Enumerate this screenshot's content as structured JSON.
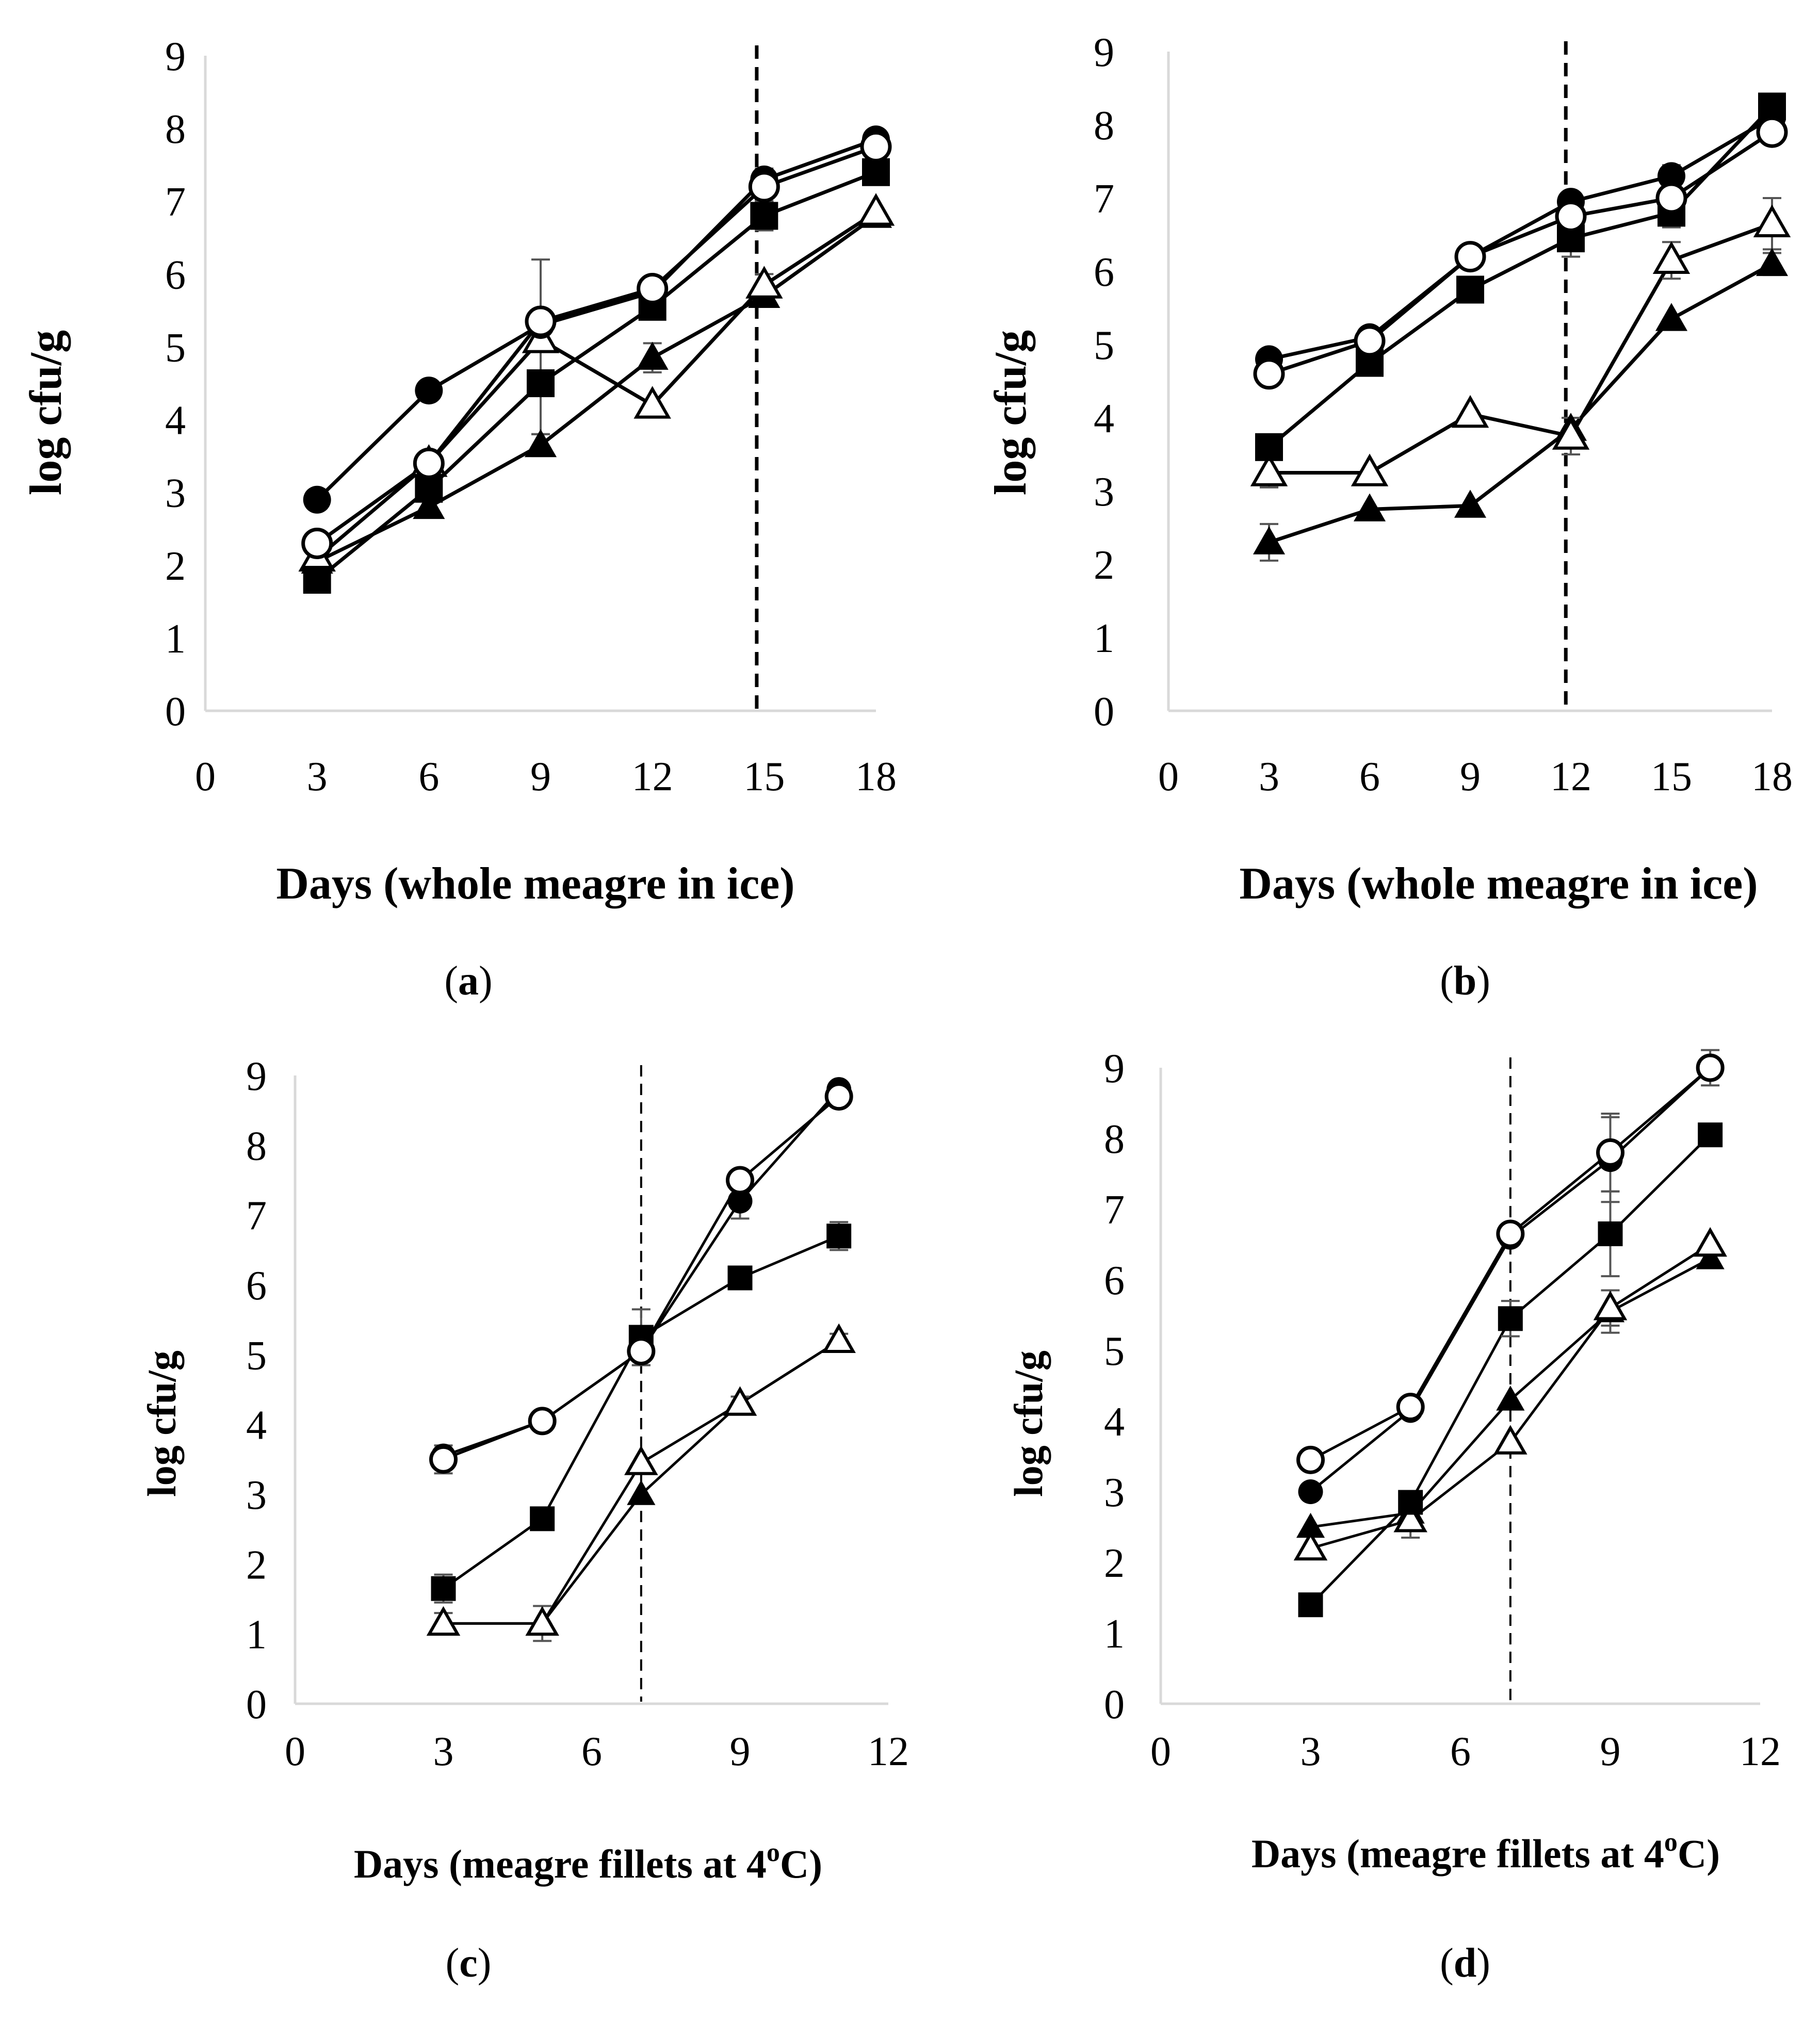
{
  "chart_data": [
    {
      "panel": "a",
      "type": "line",
      "ylabel": "log cfu/g",
      "xlabel": "Days (whole meagre in ice)",
      "caption_prefix": "(",
      "caption_letter": "a",
      "caption_suffix": ")",
      "xlim": [
        0,
        18
      ],
      "ylim": [
        0,
        9
      ],
      "xticks": [
        0,
        3,
        6,
        9,
        12,
        15,
        18
      ],
      "yticks": [
        0,
        1,
        2,
        3,
        4,
        5,
        6,
        7,
        8,
        9
      ],
      "dashed_line_x": 14.8,
      "series": [
        {
          "marker": "filled-circle",
          "x": [
            3,
            6,
            9,
            12,
            15,
            18
          ],
          "y": [
            2.9,
            4.4,
            5.3,
            5.75,
            7.3,
            7.85
          ],
          "err": [
            0,
            0,
            0,
            0,
            0.15,
            0
          ]
        },
        {
          "marker": "open-circle",
          "x": [
            3,
            6,
            9,
            12,
            15,
            18
          ],
          "y": [
            2.3,
            3.4,
            5.35,
            5.8,
            7.2,
            7.75
          ],
          "err": [
            0,
            0.15,
            0.85,
            0,
            0.2,
            0
          ]
        },
        {
          "marker": "filled-square",
          "x": [
            3,
            6,
            9,
            12,
            15,
            18
          ],
          "y": [
            1.8,
            3.05,
            4.5,
            5.55,
            6.8,
            7.4
          ],
          "err": [
            0,
            0,
            0.7,
            0,
            0.2,
            0
          ]
        },
        {
          "marker": "filled-triangle",
          "x": [
            3,
            6,
            9,
            12,
            15,
            18
          ],
          "y": [
            2.05,
            2.8,
            3.65,
            4.85,
            5.7,
            6.8
          ],
          "err": [
            0,
            0,
            0.15,
            0.2,
            0.15,
            0
          ]
        },
        {
          "marker": "open-triangle",
          "x": [
            3,
            6,
            9,
            12,
            15,
            18
          ],
          "y": [
            2.1,
            3.4,
            5.1,
            4.2,
            5.85,
            6.85
          ],
          "err": [
            0,
            0,
            0,
            0,
            0.15,
            0
          ]
        }
      ]
    },
    {
      "panel": "b",
      "type": "line",
      "ylabel": "log cfu/g",
      "xlabel": "Days (whole meagre in ice)",
      "caption_prefix": "(",
      "caption_letter": "b",
      "caption_suffix": ")",
      "xlim": [
        0,
        18
      ],
      "ylim": [
        0,
        9
      ],
      "xticks": [
        0,
        3,
        6,
        9,
        12,
        15,
        18
      ],
      "yticks": [
        0,
        1,
        2,
        3,
        4,
        5,
        6,
        7,
        8,
        9
      ],
      "dashed_line_x": 11.85,
      "series": [
        {
          "marker": "filled-circle",
          "x": [
            3,
            6,
            9,
            12,
            15,
            18
          ],
          "y": [
            4.8,
            5.1,
            6.2,
            6.95,
            7.3,
            8.1
          ],
          "err": [
            0,
            0,
            0,
            0,
            0.15,
            0
          ]
        },
        {
          "marker": "open-circle",
          "x": [
            3,
            6,
            9,
            12,
            15,
            18
          ],
          "y": [
            4.6,
            5.05,
            6.2,
            6.75,
            7.0,
            7.9
          ],
          "err": [
            0,
            0,
            0,
            0,
            0.15,
            0.15
          ]
        },
        {
          "marker": "filled-square",
          "x": [
            3,
            6,
            9,
            12,
            15,
            18
          ],
          "y": [
            3.6,
            4.75,
            5.75,
            6.45,
            6.8,
            8.25
          ],
          "err": [
            0,
            0,
            0.15,
            0.25,
            0.2,
            0
          ]
        },
        {
          "marker": "filled-triangle",
          "x": [
            3,
            6,
            9,
            12,
            15,
            18
          ],
          "y": [
            2.3,
            2.75,
            2.8,
            3.85,
            5.35,
            6.1
          ],
          "err": [
            0.25,
            0,
            0,
            0,
            0,
            0.15
          ]
        },
        {
          "marker": "open-triangle",
          "x": [
            3,
            6,
            9,
            12,
            15,
            18
          ],
          "y": [
            3.25,
            3.25,
            4.05,
            3.75,
            6.15,
            6.65
          ],
          "err": [
            0.2,
            0,
            0,
            0.25,
            0.25,
            0.35
          ]
        }
      ]
    },
    {
      "panel": "c",
      "type": "line",
      "ylabel": "log cfu/g",
      "xlabel_prefix": "Days (meagre fillets at 4",
      "xlabel_super": "o",
      "xlabel_suffix": "C)",
      "caption_prefix": "(",
      "caption_letter": "c",
      "caption_suffix": ")",
      "xlim": [
        0,
        12
      ],
      "ylim": [
        0,
        9
      ],
      "xticks": [
        0,
        3,
        6,
        9,
        12
      ],
      "yticks": [
        0,
        1,
        2,
        3,
        4,
        5,
        6,
        7,
        8,
        9
      ],
      "dashed_line_x": 7,
      "series": [
        {
          "marker": "filled-circle",
          "x": [
            3,
            5,
            7,
            9,
            11
          ],
          "y": [
            3.55,
            4.05,
            5.05,
            7.2,
            8.8
          ],
          "err": [
            0,
            0,
            0,
            0.25,
            0
          ]
        },
        {
          "marker": "open-circle",
          "x": [
            3,
            5,
            7,
            9,
            11
          ],
          "y": [
            3.5,
            4.05,
            5.05,
            7.5,
            8.7
          ],
          "err": [
            0.2,
            0,
            0.2,
            0,
            0
          ]
        },
        {
          "marker": "filled-square",
          "x": [
            3,
            5,
            7,
            9,
            11
          ],
          "y": [
            1.65,
            2.65,
            5.25,
            6.1,
            6.7
          ],
          "err": [
            0.2,
            0,
            0.4,
            0,
            0.2
          ]
        },
        {
          "marker": "filled-triangle",
          "x": [
            3,
            5,
            7,
            9,
            11
          ],
          "y": [
            1.15,
            1.15,
            3.0,
            4.3,
            5.2
          ],
          "err": [
            0.15,
            0.25,
            0,
            0,
            0
          ]
        },
        {
          "marker": "open-triangle",
          "x": [
            3,
            5,
            7,
            9,
            11
          ],
          "y": [
            1.15,
            1.15,
            3.45,
            4.3,
            5.2
          ],
          "err": [
            0,
            0,
            0,
            0.1,
            0.1
          ]
        }
      ]
    },
    {
      "panel": "d",
      "type": "line",
      "ylabel": "log cfu/g",
      "xlabel_prefix": "Days (meagre fillets at 4",
      "xlabel_super": "o",
      "xlabel_suffix": "C)",
      "caption_prefix": "(",
      "caption_letter": "d",
      "caption_suffix": ")",
      "xlim": [
        0,
        12
      ],
      "ylim": [
        0,
        9
      ],
      "xticks": [
        0,
        3,
        6,
        9,
        12
      ],
      "yticks": [
        0,
        1,
        2,
        3,
        4,
        5,
        6,
        7,
        8,
        9
      ],
      "dashed_line_x": 7,
      "series": [
        {
          "marker": "filled-circle",
          "x": [
            3,
            5,
            7,
            9,
            11
          ],
          "y": [
            3.0,
            4.15,
            6.6,
            7.7,
            9.0
          ],
          "err": [
            0,
            0,
            0,
            0.6,
            0.25
          ]
        },
        {
          "marker": "open-circle",
          "x": [
            3,
            5,
            7,
            9,
            11
          ],
          "y": [
            3.45,
            4.2,
            6.65,
            7.8,
            9.0
          ],
          "err": [
            0,
            0,
            0,
            0.55,
            0
          ]
        },
        {
          "marker": "filled-square",
          "x": [
            3,
            5,
            7,
            9,
            11
          ],
          "y": [
            1.4,
            2.85,
            5.45,
            6.65,
            8.05
          ],
          "err": [
            0,
            0,
            0.25,
            0.6,
            0.15
          ]
        },
        {
          "marker": "filled-triangle",
          "x": [
            3,
            5,
            7,
            9,
            11
          ],
          "y": [
            2.5,
            2.7,
            4.3,
            5.55,
            6.3
          ],
          "err": [
            0,
            0,
            0,
            0.3,
            0
          ]
        },
        {
          "marker": "open-triangle",
          "x": [
            3,
            5,
            7,
            9,
            11
          ],
          "y": [
            2.2,
            2.6,
            3.7,
            5.6,
            6.5
          ],
          "err": [
            0,
            0.25,
            0,
            0.25,
            0
          ]
        }
      ]
    }
  ]
}
